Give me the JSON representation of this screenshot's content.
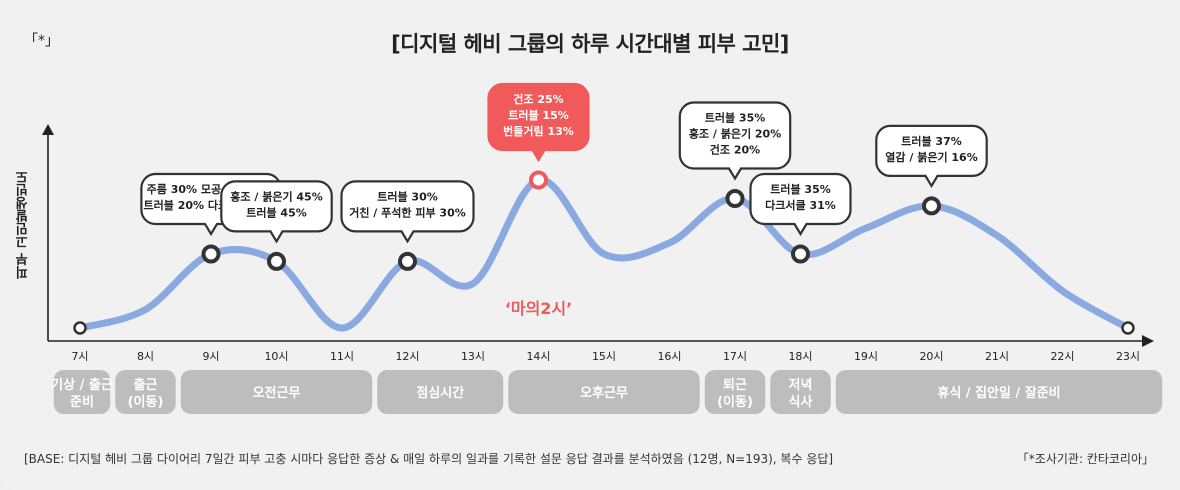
{
  "corner_mark": "「*」",
  "footer": {
    "base": "[BASE: 디지털 헤비 그룹 다이어리 7일간 피부 고충 시마다 응답한 증상 & 매일 하루의 일과를 기록한 설문 응답 결과를 분석하였음 (12명, N=193), 복수 응답]",
    "source": "「*조사기관: 칸타코리아」"
  },
  "chart_data": {
    "type": "line",
    "title": "[디지털 헤비 그룹의 하루 시간대별 피부 고민]",
    "ylabel": "피부 고민발생빈도",
    "x": [
      "7시",
      "8시",
      "9시",
      "10시",
      "11시",
      "12시",
      "13시",
      "14시",
      "15시",
      "16시",
      "17시",
      "18시",
      "19시",
      "20시",
      "21시",
      "22시",
      "23시"
    ],
    "series": [
      {
        "values": [
          0,
          1,
          4,
          3.6,
          0,
          3.6,
          2.4,
          8,
          4,
          4.6,
          7,
          4,
          5.4,
          6.6,
          5,
          2,
          0
        ]
      }
    ],
    "colors": {
      "line": "#8aa9e0",
      "highlight": "#f05a5a",
      "marker": "#333333",
      "activity": "#bdbdbd"
    },
    "annotations": [
      {
        "x": "9시",
        "lines": [
          "주름 30% 모공 처짐 20%",
          "트러블 20% 다크서클 20%"
        ],
        "highlight": false
      },
      {
        "x": "10시",
        "lines": [
          "홍조 / 붉은기 45%",
          "트러블 45%"
        ],
        "highlight": false
      },
      {
        "x": "12시",
        "lines": [
          "트러블 30%",
          "거친 / 푸석한 피부 30%"
        ],
        "highlight": false
      },
      {
        "x": "14시",
        "lines": [
          "건조 25%",
          "트러블 15%",
          "번들거림 13%"
        ],
        "highlight": true
      },
      {
        "x": "17시",
        "lines": [
          "트러블 35%",
          "홍조 / 붉은기 20%",
          "건조 20%"
        ],
        "highlight": false
      },
      {
        "x": "18시",
        "lines": [
          "트러블 35%",
          "다크서클 31%"
        ],
        "highlight": false
      },
      {
        "x": "20시",
        "lines": [
          "트러블 37%",
          "열감 / 붉은기 16%"
        ],
        "highlight": false
      }
    ],
    "callout": "‘마의2시’",
    "activities": [
      {
        "label": "기상 / 출근 준비",
        "from": "7시",
        "to": "7시"
      },
      {
        "label": "출근 (이동)",
        "from": "8시",
        "to": "8시"
      },
      {
        "label": "오전근무",
        "from": "9시",
        "to": "11시"
      },
      {
        "label": "점심시간",
        "from": "12시",
        "to": "13시"
      },
      {
        "label": "오후근무",
        "from": "14시",
        "to": "16시"
      },
      {
        "label": "퇴근 (이동)",
        "from": "17시",
        "to": "17시"
      },
      {
        "label": "저녁 식사",
        "from": "18시",
        "to": "18시"
      },
      {
        "label": "휴식 / 집안일 / 잘준비",
        "from": "19시",
        "to": "23시"
      }
    ]
  }
}
